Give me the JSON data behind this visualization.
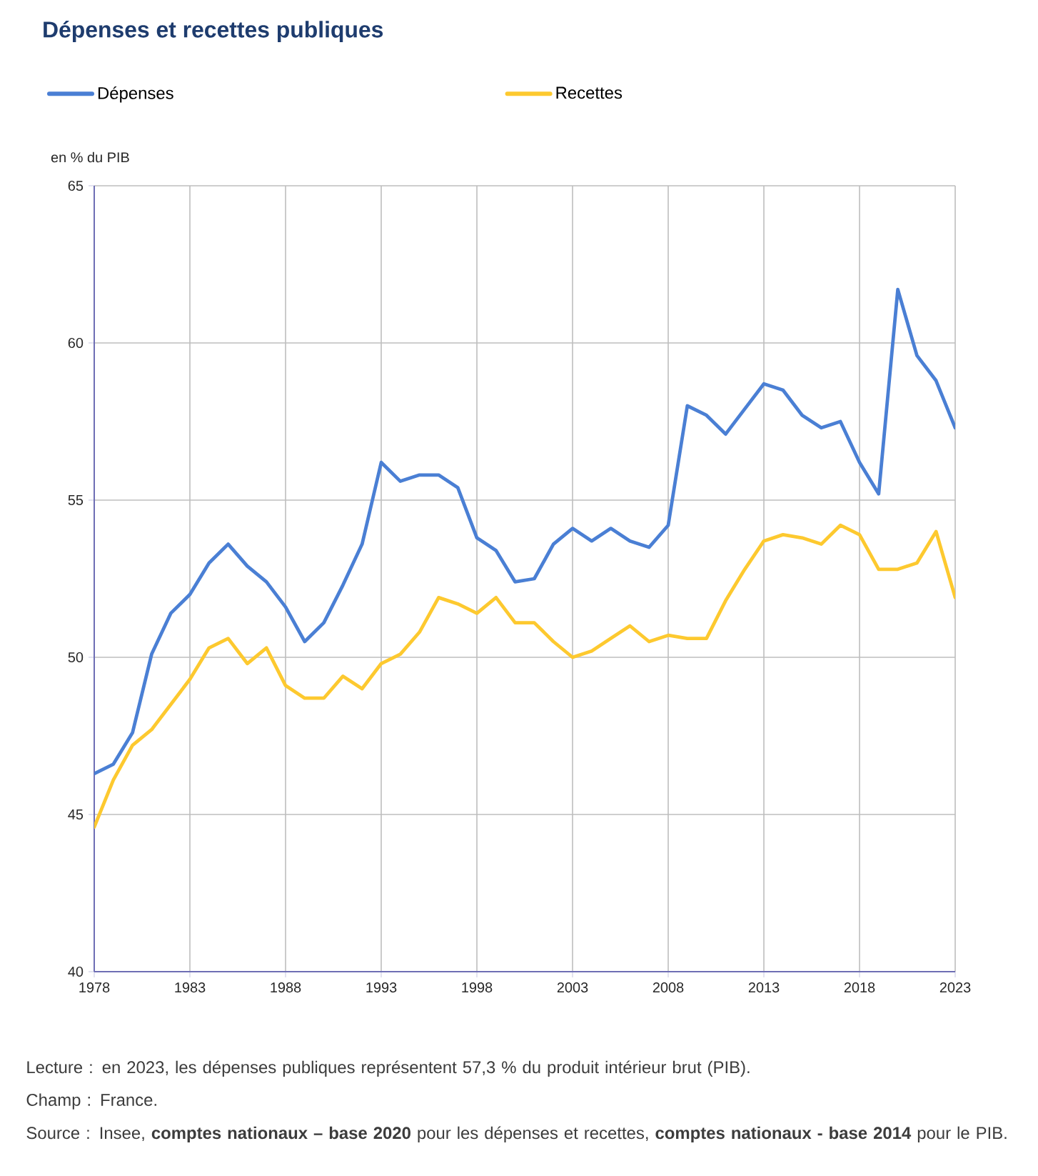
{
  "chart_data": {
    "type": "line",
    "title": "Dépenses et recettes publiques",
    "ylabel": "en % du PIB",
    "x": [
      1978,
      1979,
      1980,
      1981,
      1982,
      1983,
      1984,
      1985,
      1986,
      1987,
      1988,
      1989,
      1990,
      1991,
      1992,
      1993,
      1994,
      1995,
      1996,
      1997,
      1998,
      1999,
      2000,
      2001,
      2002,
      2003,
      2004,
      2005,
      2006,
      2007,
      2008,
      2009,
      2010,
      2011,
      2012,
      2013,
      2014,
      2015,
      2016,
      2017,
      2018,
      2019,
      2020,
      2021,
      2022,
      2023
    ],
    "series": [
      {
        "name": "Dépenses",
        "color": "#4a7fd4",
        "values": [
          46.3,
          46.6,
          47.6,
          50.1,
          51.4,
          52.0,
          53.0,
          53.6,
          52.9,
          52.4,
          51.6,
          50.5,
          51.1,
          52.3,
          53.6,
          56.2,
          55.6,
          55.8,
          55.8,
          55.4,
          53.8,
          53.4,
          52.4,
          52.5,
          53.6,
          54.1,
          53.7,
          54.1,
          53.7,
          53.5,
          54.2,
          58.0,
          57.7,
          57.1,
          57.9,
          58.7,
          58.5,
          57.7,
          57.3,
          57.5,
          56.2,
          55.2,
          61.7,
          59.6,
          58.8,
          57.3
        ]
      },
      {
        "name": "Recettes",
        "color": "#fdc92f",
        "values": [
          44.6,
          46.1,
          47.2,
          47.7,
          48.5,
          49.3,
          50.3,
          50.6,
          49.8,
          50.3,
          49.1,
          48.7,
          48.7,
          49.4,
          49.0,
          49.8,
          50.1,
          50.8,
          51.9,
          51.7,
          51.4,
          51.9,
          51.1,
          51.1,
          50.5,
          50.0,
          50.2,
          50.6,
          51.0,
          50.5,
          50.7,
          50.6,
          50.6,
          51.8,
          52.8,
          53.7,
          53.9,
          53.8,
          53.6,
          54.2,
          53.9,
          52.8,
          52.8,
          53.0,
          54.0,
          51.9
        ]
      }
    ],
    "xlim": [
      1978,
      2023
    ],
    "xticks": [
      1978,
      1983,
      1988,
      1993,
      1998,
      2003,
      2008,
      2013,
      2018,
      2023
    ],
    "ylim": [
      40,
      65
    ],
    "yticks": [
      40,
      45,
      50,
      55,
      60,
      65
    ],
    "grid": true,
    "legend": "top",
    "marker": "none",
    "line_style": "solid",
    "annotations": [
      "Lecture : en 2023, les dépenses publiques représentent 57,3 % du produit intérieur brut (PIB).",
      "Champ : France.",
      "Source : Insee, **comptes nationaux – base 2020** pour les dépenses et recettes, **comptes nationaux - base 2014** pour le PIB."
    ]
  }
}
